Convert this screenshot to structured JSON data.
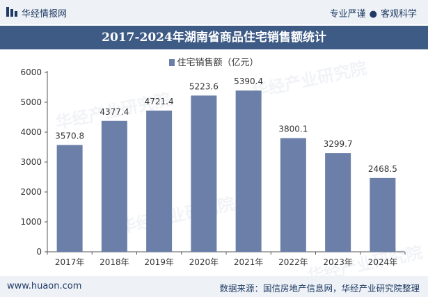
{
  "header": {
    "brand_name": "华经情报网",
    "slogan_left": "专业严谨",
    "slogan_right": "客观科学"
  },
  "watermark_text": "华经产业研究院",
  "footer": {
    "website": "www.huaon.com",
    "source": "数据来源：国信房地产信息网，华经产业研究院整理"
  },
  "colors": {
    "bar": "#6b7fa8",
    "title_band": "#3e5b86",
    "header_bg": "#eef2f7",
    "brand_text": "#1f3a63"
  },
  "chart_data": {
    "type": "bar",
    "title": "2017-2024年湖南省商品住宅销售额统计",
    "legend": [
      "住宅销售额（亿元）"
    ],
    "categories": [
      "2017年",
      "2018年",
      "2019年",
      "2020年",
      "2021年",
      "2022年",
      "2023年",
      "2024年"
    ],
    "values": [
      3570.8,
      4377.4,
      4721.4,
      5223.6,
      5390.4,
      3800.1,
      3299.7,
      2468.5
    ],
    "value_labels": [
      "3570.8",
      "4377.4",
      "4721.4",
      "5223.6",
      "5390.4",
      "3800.1",
      "3299.7",
      "2468.5"
    ],
    "yticks": [
      0,
      1000,
      2000,
      3000,
      4000,
      5000,
      6000
    ],
    "ylim": [
      0,
      6000
    ],
    "xlabel": "",
    "ylabel": "",
    "grid": false
  }
}
